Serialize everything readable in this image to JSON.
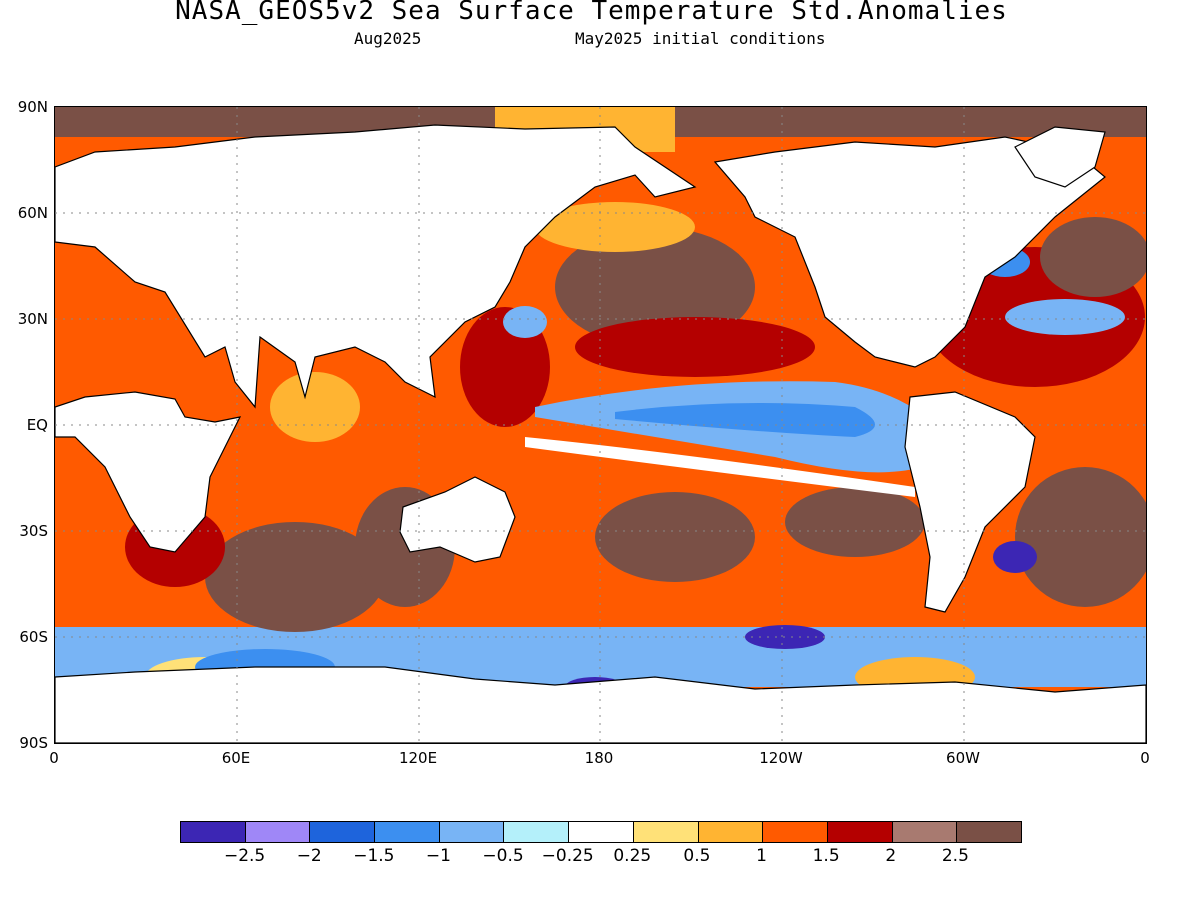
{
  "title": "NASA_GEOS5v2 Sea Surface Temperature Std.Anomalies",
  "valid_month": "Aug2025",
  "initial_conditions": "May2025 initial conditions",
  "map": {
    "projection": "equirectangular",
    "lon_range": [
      0,
      360
    ],
    "lat_range": [
      -90,
      90
    ],
    "grid": "dotted",
    "y_axis_labels": [
      "90N",
      "60N",
      "30N",
      "EQ",
      "30S",
      "60S",
      "90S"
    ],
    "x_axis_labels": [
      "0",
      "60E",
      "120E",
      "180",
      "120W",
      "60W",
      "0"
    ],
    "land_color": "#ffffff",
    "coastline_color": "#000000"
  },
  "colorbar": {
    "colors": [
      "#3c26b4",
      "#9f87f7",
      "#1e64dc",
      "#3c8ff0",
      "#78b4f5",
      "#b4f0fa",
      "#ffffff",
      "#ffe178",
      "#ffb432",
      "#ff5a00",
      "#b40000",
      "#a87a70",
      "#7a5046"
    ],
    "tick_labels": [
      "−2.5",
      "−2",
      "−1.5",
      "−1",
      "−0.5",
      "−0.25",
      "0.25",
      "0.5",
      "1",
      "1.5",
      "2",
      "2.5"
    ]
  }
}
